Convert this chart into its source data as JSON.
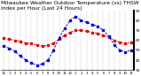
{
  "title": "Milwaukee Weather Outdoor Temperature (vs) THSW Index per Hour (Last 24 Hours)",
  "title_fontsize": 4.2,
  "hours": [
    0,
    1,
    2,
    3,
    4,
    5,
    6,
    7,
    8,
    9,
    10,
    11,
    12,
    13,
    14,
    15,
    16,
    17,
    18,
    19,
    20,
    21,
    22,
    23
  ],
  "temp": [
    62,
    61,
    60,
    59,
    57,
    57,
    55,
    54,
    55,
    57,
    61,
    65,
    68,
    70,
    70,
    69,
    68,
    67,
    65,
    63,
    60,
    58,
    57,
    58
  ],
  "thsw": [
    54,
    52,
    49,
    44,
    40,
    37,
    35,
    36,
    40,
    50,
    62,
    72,
    80,
    84,
    80,
    78,
    76,
    74,
    70,
    64,
    55,
    50,
    48,
    50
  ],
  "temp_color": "#dd0000",
  "thsw_color": "#0000dd",
  "bg_color": "#ffffff",
  "grid_color": "#999999",
  "ylim_min": 30,
  "ylim_max": 90,
  "ytick_step": 10,
  "ylabel_fontsize": 3.2,
  "xlabel_fontsize": 2.8,
  "line_width": 0.7,
  "marker_size": 1.5
}
